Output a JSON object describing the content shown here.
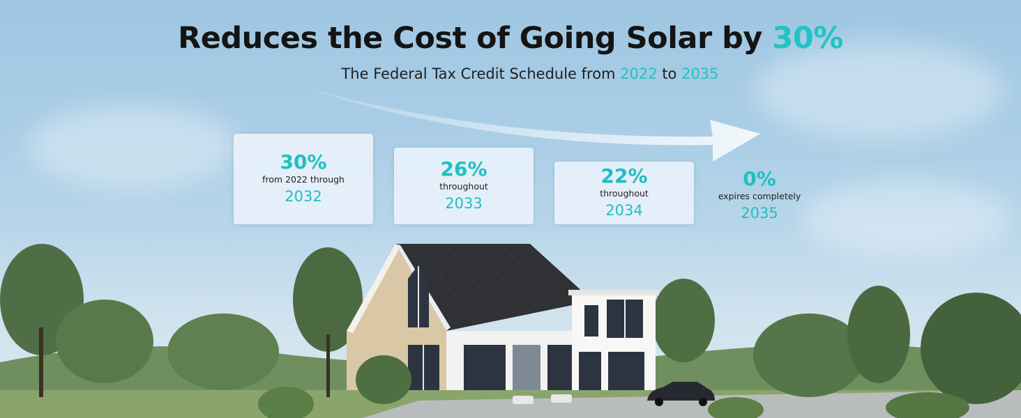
{
  "heading": {
    "title_main": "Reduces the Cost of Going Solar by ",
    "title_accent": "30%",
    "subtitle_prefix": "The Federal Tax Credit Schedule from ",
    "subtitle_start_year": "2022",
    "subtitle_middle": " to ",
    "subtitle_end_year": "2035"
  },
  "schedule": [
    {
      "percent": "30%",
      "description": "from 2022 through",
      "year": "2032"
    },
    {
      "percent": "26%",
      "description": "throughout",
      "year": "2033"
    },
    {
      "percent": "22%",
      "description": "throughout",
      "year": "2034"
    },
    {
      "percent": "0%",
      "description": "expires completely",
      "year": "2035"
    }
  ],
  "colors": {
    "accent": "#20c4c4",
    "title_text": "#141414",
    "sky_top": "#9fc6e2",
    "card_background": "#ebf3fa"
  },
  "decorations": {
    "arrow": "trend-arrow-icon",
    "illustration": "solar-house-illustration"
  }
}
